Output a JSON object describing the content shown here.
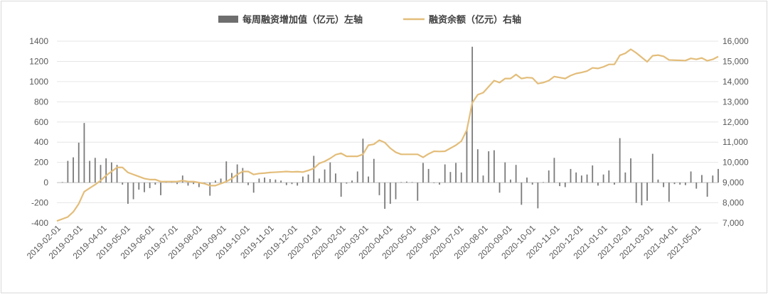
{
  "chart_data": {
    "type": "bar+line",
    "legend": {
      "placement": "top-center",
      "items": [
        {
          "label": "每周融资增加值（亿元）左轴",
          "kind": "bar",
          "color": "#6e6e6e"
        },
        {
          "label": "融资余额（亿元）右轴",
          "kind": "line",
          "color": "#e3bd7a"
        }
      ]
    },
    "left_axis": {
      "min": -400,
      "max": 1400,
      "ticks": [
        "-400",
        "-200",
        "0",
        "200",
        "400",
        "600",
        "800",
        "1000",
        "1200",
        "1400"
      ]
    },
    "right_axis": {
      "min": 7000,
      "max": 16000,
      "ticks": [
        "7,000",
        "8,000",
        "9,000",
        "10,000",
        "11,000",
        "12,000",
        "13,000",
        "14,000",
        "15,000",
        "16,000"
      ]
    },
    "x_ticks": [
      "2019-02-01",
      "2019-03-01",
      "2019-04-01",
      "2019-05-01",
      "2019-06-01",
      "2019-07-01",
      "2019-08-01",
      "2019-09-01",
      "2019-10-01",
      "2019-11-01",
      "2019-12-01",
      "2020-01-01",
      "2020-02-01",
      "2020-03-01",
      "2020-04-01",
      "2020-05-01",
      "2020-06-01",
      "2020-07-01",
      "2020-08-01",
      "2020-09-01",
      "2020-10-01",
      "2020-11-01",
      "2020-12-01",
      "2021-01-01",
      "2021-02-01",
      "2021-03-01",
      "2021-04-01",
      "2021-05-01"
    ],
    "x_range": [
      "2019-02-01",
      "2021-05-28"
    ],
    "grid": "horizontal",
    "weekly_increase": [
      {
        "date": "2019-02-08",
        "value": 5
      },
      {
        "date": "2019-02-15",
        "value": 215
      },
      {
        "date": "2019-02-22",
        "value": 250
      },
      {
        "date": "2019-03-01",
        "value": 395
      },
      {
        "date": "2019-03-08",
        "value": 590
      },
      {
        "date": "2019-03-15",
        "value": 215
      },
      {
        "date": "2019-03-22",
        "value": 245
      },
      {
        "date": "2019-03-29",
        "value": 175
      },
      {
        "date": "2019-04-05",
        "value": 240
      },
      {
        "date": "2019-04-12",
        "value": 200
      },
      {
        "date": "2019-04-19",
        "value": 175
      },
      {
        "date": "2019-04-26",
        "value": -20
      },
      {
        "date": "2019-05-03",
        "value": -210
      },
      {
        "date": "2019-05-10",
        "value": -165
      },
      {
        "date": "2019-05-17",
        "value": -70
      },
      {
        "date": "2019-05-24",
        "value": -95
      },
      {
        "date": "2019-05-31",
        "value": -55
      },
      {
        "date": "2019-06-07",
        "value": -20
      },
      {
        "date": "2019-06-14",
        "value": -125
      },
      {
        "date": "2019-06-21",
        "value": 10
      },
      {
        "date": "2019-06-28",
        "value": 5
      },
      {
        "date": "2019-07-05",
        "value": -15
      },
      {
        "date": "2019-07-12",
        "value": 70
      },
      {
        "date": "2019-07-19",
        "value": -30
      },
      {
        "date": "2019-07-26",
        "value": -15
      },
      {
        "date": "2019-08-02",
        "value": -45
      },
      {
        "date": "2019-08-09",
        "value": -15
      },
      {
        "date": "2019-08-16",
        "value": -130
      },
      {
        "date": "2019-08-23",
        "value": 20
      },
      {
        "date": "2019-08-30",
        "value": 40
      },
      {
        "date": "2019-09-06",
        "value": 210
      },
      {
        "date": "2019-09-13",
        "value": 95
      },
      {
        "date": "2019-09-20",
        "value": 180
      },
      {
        "date": "2019-09-27",
        "value": 145
      },
      {
        "date": "2019-10-04",
        "value": -25
      },
      {
        "date": "2019-10-11",
        "value": -100
      },
      {
        "date": "2019-10-18",
        "value": 40
      },
      {
        "date": "2019-10-25",
        "value": 50
      },
      {
        "date": "2019-11-01",
        "value": 35
      },
      {
        "date": "2019-11-08",
        "value": 30
      },
      {
        "date": "2019-11-15",
        "value": 20
      },
      {
        "date": "2019-11-22",
        "value": -25
      },
      {
        "date": "2019-11-29",
        "value": -15
      },
      {
        "date": "2019-12-06",
        "value": -30
      },
      {
        "date": "2019-12-13",
        "value": 60
      },
      {
        "date": "2019-12-20",
        "value": 80
      },
      {
        "date": "2019-12-27",
        "value": 265
      },
      {
        "date": "2020-01-03",
        "value": 40
      },
      {
        "date": "2020-01-10",
        "value": 130
      },
      {
        "date": "2020-01-17",
        "value": 200
      },
      {
        "date": "2020-01-24",
        "value": 90
      },
      {
        "date": "2020-01-31",
        "value": -140
      },
      {
        "date": "2020-02-07",
        "value": -10
      },
      {
        "date": "2020-02-14",
        "value": 20
      },
      {
        "date": "2020-02-21",
        "value": 110
      },
      {
        "date": "2020-02-28",
        "value": 435
      },
      {
        "date": "2020-03-06",
        "value": 60
      },
      {
        "date": "2020-03-13",
        "value": 235
      },
      {
        "date": "2020-03-20",
        "value": -125
      },
      {
        "date": "2020-03-27",
        "value": -260
      },
      {
        "date": "2020-04-03",
        "value": -210
      },
      {
        "date": "2020-04-10",
        "value": -165
      },
      {
        "date": "2020-04-17",
        "value": 5
      },
      {
        "date": "2020-04-24",
        "value": 10
      },
      {
        "date": "2020-05-01",
        "value": 5
      },
      {
        "date": "2020-05-08",
        "value": -180
      },
      {
        "date": "2020-05-15",
        "value": 195
      },
      {
        "date": "2020-05-22",
        "value": 135
      },
      {
        "date": "2020-05-29",
        "value": -5
      },
      {
        "date": "2020-06-05",
        "value": -20
      },
      {
        "date": "2020-06-12",
        "value": 180
      },
      {
        "date": "2020-06-19",
        "value": 105
      },
      {
        "date": "2020-06-26",
        "value": 195
      },
      {
        "date": "2020-07-03",
        "value": 100
      },
      {
        "date": "2020-07-10",
        "value": 520
      },
      {
        "date": "2020-07-17",
        "value": 1345
      },
      {
        "date": "2020-07-24",
        "value": 330
      },
      {
        "date": "2020-07-31",
        "value": 70
      },
      {
        "date": "2020-08-07",
        "value": 310
      },
      {
        "date": "2020-08-14",
        "value": 320
      },
      {
        "date": "2020-08-21",
        "value": -100
      },
      {
        "date": "2020-08-28",
        "value": 200
      },
      {
        "date": "2020-09-04",
        "value": 30
      },
      {
        "date": "2020-09-11",
        "value": 175
      },
      {
        "date": "2020-09-18",
        "value": -220
      },
      {
        "date": "2020-09-25",
        "value": 50
      },
      {
        "date": "2020-10-02",
        "value": -20
      },
      {
        "date": "2020-10-09",
        "value": -255
      },
      {
        "date": "2020-10-16",
        "value": 5
      },
      {
        "date": "2020-10-23",
        "value": 120
      },
      {
        "date": "2020-10-30",
        "value": 245
      },
      {
        "date": "2020-11-06",
        "value": -35
      },
      {
        "date": "2020-11-13",
        "value": -45
      },
      {
        "date": "2020-11-20",
        "value": 135
      },
      {
        "date": "2020-11-27",
        "value": 100
      },
      {
        "date": "2020-12-04",
        "value": 70
      },
      {
        "date": "2020-12-11",
        "value": 80
      },
      {
        "date": "2020-12-18",
        "value": 170
      },
      {
        "date": "2020-12-25",
        "value": -30
      },
      {
        "date": "2021-01-01",
        "value": 80
      },
      {
        "date": "2021-01-08",
        "value": 120
      },
      {
        "date": "2021-01-15",
        "value": -20
      },
      {
        "date": "2021-01-22",
        "value": 440
      },
      {
        "date": "2021-01-29",
        "value": 100
      },
      {
        "date": "2021-02-05",
        "value": 240
      },
      {
        "date": "2021-02-12",
        "value": -200
      },
      {
        "date": "2021-02-19",
        "value": -225
      },
      {
        "date": "2021-02-26",
        "value": -180
      },
      {
        "date": "2021-03-05",
        "value": 285
      },
      {
        "date": "2021-03-12",
        "value": 30
      },
      {
        "date": "2021-03-19",
        "value": -45
      },
      {
        "date": "2021-03-26",
        "value": -190
      },
      {
        "date": "2021-04-02",
        "value": -15
      },
      {
        "date": "2021-04-09",
        "value": -20
      },
      {
        "date": "2021-04-16",
        "value": -25
      },
      {
        "date": "2021-04-23",
        "value": 110
      },
      {
        "date": "2021-04-30",
        "value": -60
      },
      {
        "date": "2021-05-07",
        "value": 75
      },
      {
        "date": "2021-05-14",
        "value": -140
      },
      {
        "date": "2021-05-21",
        "value": 70
      },
      {
        "date": "2021-05-28",
        "value": 135
      }
    ],
    "balance": [
      {
        "date": "2019-02-01",
        "value": 7100
      },
      {
        "date": "2019-02-15",
        "value": 7300
      },
      {
        "date": "2019-02-22",
        "value": 7550
      },
      {
        "date": "2019-03-01",
        "value": 7950
      },
      {
        "date": "2019-03-08",
        "value": 8550
      },
      {
        "date": "2019-03-22",
        "value": 8900
      },
      {
        "date": "2019-03-29",
        "value": 9100
      },
      {
        "date": "2019-04-05",
        "value": 9350
      },
      {
        "date": "2019-04-12",
        "value": 9550
      },
      {
        "date": "2019-04-19",
        "value": 9750
      },
      {
        "date": "2019-04-26",
        "value": 9750
      },
      {
        "date": "2019-05-03",
        "value": 9500
      },
      {
        "date": "2019-05-10",
        "value": 9400
      },
      {
        "date": "2019-05-17",
        "value": 9300
      },
      {
        "date": "2019-05-24",
        "value": 9200
      },
      {
        "date": "2019-05-31",
        "value": 9150
      },
      {
        "date": "2019-06-07",
        "value": 9150
      },
      {
        "date": "2019-06-14",
        "value": 9050
      },
      {
        "date": "2019-06-21",
        "value": 9050
      },
      {
        "date": "2019-07-05",
        "value": 9050
      },
      {
        "date": "2019-07-12",
        "value": 9100
      },
      {
        "date": "2019-07-19",
        "value": 9050
      },
      {
        "date": "2019-07-26",
        "value": 9050
      },
      {
        "date": "2019-08-02",
        "value": 9000
      },
      {
        "date": "2019-08-09",
        "value": 8950
      },
      {
        "date": "2019-08-16",
        "value": 8850
      },
      {
        "date": "2019-08-23",
        "value": 8850
      },
      {
        "date": "2019-08-30",
        "value": 8950
      },
      {
        "date": "2019-09-06",
        "value": 9050
      },
      {
        "date": "2019-09-13",
        "value": 9200
      },
      {
        "date": "2019-09-20",
        "value": 9400
      },
      {
        "date": "2019-09-27",
        "value": 9550
      },
      {
        "date": "2019-10-04",
        "value": 9550
      },
      {
        "date": "2019-10-11",
        "value": 9400
      },
      {
        "date": "2019-10-18",
        "value": 9450
      },
      {
        "date": "2019-10-25",
        "value": 9470
      },
      {
        "date": "2019-11-01",
        "value": 9500
      },
      {
        "date": "2019-11-15",
        "value": 9530
      },
      {
        "date": "2019-11-22",
        "value": 9550
      },
      {
        "date": "2019-11-29",
        "value": 9530
      },
      {
        "date": "2019-12-06",
        "value": 9540
      },
      {
        "date": "2019-12-13",
        "value": 9520
      },
      {
        "date": "2019-12-20",
        "value": 9600
      },
      {
        "date": "2019-12-27",
        "value": 9700
      },
      {
        "date": "2020-01-03",
        "value": 9950
      },
      {
        "date": "2020-01-10",
        "value": 10050
      },
      {
        "date": "2020-01-17",
        "value": 10200
      },
      {
        "date": "2020-01-24",
        "value": 10380
      },
      {
        "date": "2020-01-31",
        "value": 10450
      },
      {
        "date": "2020-02-07",
        "value": 10300
      },
      {
        "date": "2020-02-14",
        "value": 10300
      },
      {
        "date": "2020-02-21",
        "value": 10300
      },
      {
        "date": "2020-02-28",
        "value": 10400
      },
      {
        "date": "2020-03-06",
        "value": 10850
      },
      {
        "date": "2020-03-13",
        "value": 10900
      },
      {
        "date": "2020-03-20",
        "value": 11100
      },
      {
        "date": "2020-03-27",
        "value": 10980
      },
      {
        "date": "2020-04-03",
        "value": 10700
      },
      {
        "date": "2020-04-10",
        "value": 10500
      },
      {
        "date": "2020-04-17",
        "value": 10400
      },
      {
        "date": "2020-04-24",
        "value": 10400
      },
      {
        "date": "2020-05-01",
        "value": 10400
      },
      {
        "date": "2020-05-08",
        "value": 10400
      },
      {
        "date": "2020-05-15",
        "value": 10250
      },
      {
        "date": "2020-05-22",
        "value": 10420
      },
      {
        "date": "2020-05-29",
        "value": 10550
      },
      {
        "date": "2020-06-05",
        "value": 10540
      },
      {
        "date": "2020-06-12",
        "value": 10550
      },
      {
        "date": "2020-06-19",
        "value": 10700
      },
      {
        "date": "2020-06-26",
        "value": 10850
      },
      {
        "date": "2020-07-03",
        "value": 11050
      },
      {
        "date": "2020-07-10",
        "value": 11600
      },
      {
        "date": "2020-07-17",
        "value": 12950
      },
      {
        "date": "2020-07-24",
        "value": 13350
      },
      {
        "date": "2020-07-31",
        "value": 13450
      },
      {
        "date": "2020-08-07",
        "value": 13750
      },
      {
        "date": "2020-08-14",
        "value": 14050
      },
      {
        "date": "2020-08-21",
        "value": 13950
      },
      {
        "date": "2020-08-28",
        "value": 14150
      },
      {
        "date": "2020-09-04",
        "value": 14150
      },
      {
        "date": "2020-09-11",
        "value": 14350
      },
      {
        "date": "2020-09-18",
        "value": 14150
      },
      {
        "date": "2020-09-25",
        "value": 14200
      },
      {
        "date": "2020-10-02",
        "value": 14180
      },
      {
        "date": "2020-10-09",
        "value": 13900
      },
      {
        "date": "2020-10-16",
        "value": 13950
      },
      {
        "date": "2020-10-23",
        "value": 14050
      },
      {
        "date": "2020-10-30",
        "value": 14250
      },
      {
        "date": "2020-11-06",
        "value": 14200
      },
      {
        "date": "2020-11-13",
        "value": 14150
      },
      {
        "date": "2020-11-20",
        "value": 14300
      },
      {
        "date": "2020-11-27",
        "value": 14400
      },
      {
        "date": "2020-12-04",
        "value": 14450
      },
      {
        "date": "2020-12-11",
        "value": 14520
      },
      {
        "date": "2020-12-18",
        "value": 14680
      },
      {
        "date": "2020-12-25",
        "value": 14650
      },
      {
        "date": "2021-01-01",
        "value": 14730
      },
      {
        "date": "2021-01-08",
        "value": 14850
      },
      {
        "date": "2021-01-15",
        "value": 14850
      },
      {
        "date": "2021-01-22",
        "value": 15300
      },
      {
        "date": "2021-01-29",
        "value": 15400
      },
      {
        "date": "2021-02-05",
        "value": 15600
      },
      {
        "date": "2021-02-12",
        "value": 15420
      },
      {
        "date": "2021-02-19",
        "value": 15200
      },
      {
        "date": "2021-02-26",
        "value": 14980
      },
      {
        "date": "2021-03-05",
        "value": 15280
      },
      {
        "date": "2021-03-12",
        "value": 15310
      },
      {
        "date": "2021-03-19",
        "value": 15250
      },
      {
        "date": "2021-03-26",
        "value": 15070
      },
      {
        "date": "2021-04-02",
        "value": 15060
      },
      {
        "date": "2021-04-09",
        "value": 15050
      },
      {
        "date": "2021-04-16",
        "value": 15040
      },
      {
        "date": "2021-04-23",
        "value": 15150
      },
      {
        "date": "2021-04-30",
        "value": 15100
      },
      {
        "date": "2021-05-07",
        "value": 15170
      },
      {
        "date": "2021-05-14",
        "value": 15030
      },
      {
        "date": "2021-05-21",
        "value": 15100
      },
      {
        "date": "2021-05-28",
        "value": 15240
      }
    ]
  }
}
